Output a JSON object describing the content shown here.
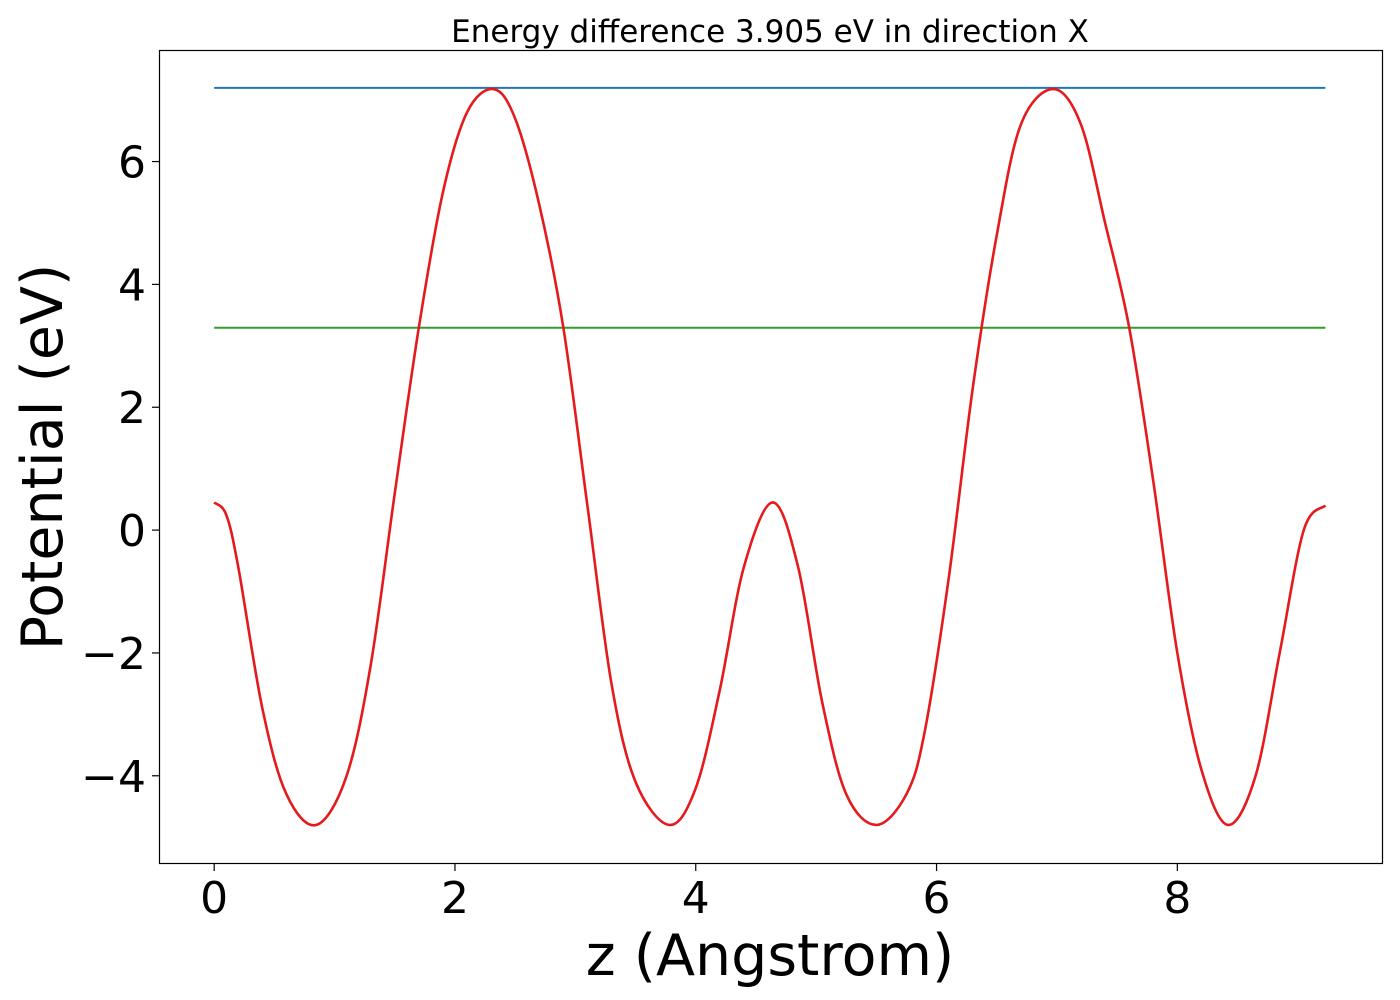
{
  "chart_data": {
    "type": "line",
    "title": "Energy difference 3.905 eV in direction X",
    "xlabel": "z (Angstrom)",
    "ylabel": "Potential (eV)",
    "xlim": [
      -0.45,
      9.7
    ],
    "ylim": [
      -5.42,
      7.8
    ],
    "xticks": [
      0,
      2,
      4,
      6,
      8
    ],
    "xtick_labels": [
      "0",
      "2",
      "4",
      "6",
      "8"
    ],
    "yticks": [
      -4,
      -2,
      0,
      2,
      4,
      6
    ],
    "ytick_labels": [
      "−4",
      "−2",
      "0",
      "2",
      "4",
      "6"
    ],
    "grid": false,
    "series": [
      {
        "color": "#1f77b4",
        "style": "horizontal",
        "x": [
          0,
          9.23
        ],
        "y": [
          7.2,
          7.2
        ]
      },
      {
        "color": "#2ca02c",
        "style": "horizontal",
        "x": [
          0,
          9.23
        ],
        "y": [
          3.295,
          3.295
        ]
      },
      {
        "color": "#e41a1c",
        "style": "curve",
        "x": [
          0,
          0.1,
          0.2,
          0.4,
          0.6,
          0.85,
          1.1,
          1.3,
          1.5,
          1.7,
          1.9,
          2.1,
          2.32,
          2.5,
          2.7,
          2.9,
          3.1,
          3.3,
          3.5,
          3.78,
          4.0,
          4.2,
          4.4,
          4.64,
          4.85,
          5.05,
          5.25,
          5.5,
          5.75,
          5.9,
          6.1,
          6.3,
          6.5,
          6.7,
          6.97,
          7.2,
          7.4,
          7.6,
          7.8,
          8.0,
          8.2,
          8.42,
          8.65,
          8.85,
          9.05,
          9.23
        ],
        "y": [
          0.45,
          0.25,
          -0.6,
          -2.9,
          -4.3,
          -4.8,
          -4.0,
          -2.2,
          0.6,
          3.3,
          5.5,
          6.8,
          7.18,
          6.7,
          5.3,
          3.3,
          0.4,
          -2.5,
          -4.1,
          -4.8,
          -4.2,
          -2.6,
          -0.6,
          0.45,
          -0.6,
          -2.8,
          -4.3,
          -4.8,
          -4.3,
          -3.3,
          -0.8,
          2.3,
          4.8,
          6.6,
          7.18,
          6.6,
          5.0,
          3.3,
          0.8,
          -2.0,
          -3.9,
          -4.8,
          -4.0,
          -2.0,
          0.0,
          0.4
        ]
      }
    ]
  }
}
